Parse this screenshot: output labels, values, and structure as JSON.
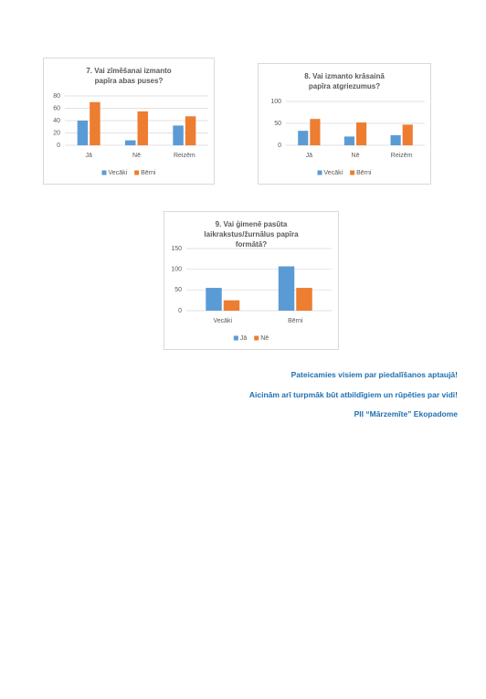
{
  "chart_data": [
    {
      "type": "bar",
      "title": "7. Vai zīmēšanai izmanto papīra abas puses?",
      "categories": [
        "Jā",
        "Nē",
        "Reizēm"
      ],
      "series": [
        {
          "name": "Vecāki",
          "color": "#5b9bd5",
          "values": [
            40,
            8,
            32
          ]
        },
        {
          "name": "Bērni",
          "color": "#ed7d31",
          "values": [
            70,
            55,
            47
          ]
        }
      ],
      "ylim": [
        0,
        80
      ],
      "yticks": [
        0,
        20,
        40,
        60,
        80
      ],
      "grid": true,
      "legend": "bottom"
    },
    {
      "type": "bar",
      "title": "8. Vai izmanto krāsainā papīra atgriezumus?",
      "categories": [
        "Jā",
        "Nē",
        "Reizēm"
      ],
      "series": [
        {
          "name": "Vecāki",
          "color": "#5b9bd5",
          "values": [
            33,
            20,
            23
          ]
        },
        {
          "name": "Bērni",
          "color": "#ed7d31",
          "values": [
            60,
            52,
            47
          ]
        }
      ],
      "ylim": [
        0,
        100
      ],
      "yticks": [
        0,
        50,
        100
      ],
      "grid": true,
      "legend": "bottom"
    },
    {
      "type": "bar",
      "title": "9. Vai ģimenē pasūta laikrakstus/žurnālus papīra formātā?",
      "categories": [
        "Vecāki",
        "Bērni"
      ],
      "series": [
        {
          "name": "Jā",
          "color": "#5b9bd5",
          "values": [
            55,
            107
          ]
        },
        {
          "name": "Nē",
          "color": "#ed7d31",
          "values": [
            25,
            55
          ]
        }
      ],
      "ylim": [
        0,
        150
      ],
      "yticks": [
        0,
        50,
        100,
        150
      ],
      "grid": true,
      "legend": "bottom"
    }
  ],
  "closing": [
    "Pateicamies visiem par piedalīšanos aptaujā!",
    "Aicinām arī turpmāk būt atbildīgiem un rūpēties par vidi!",
    "PII “Mārzemīte” Ekopadome"
  ]
}
